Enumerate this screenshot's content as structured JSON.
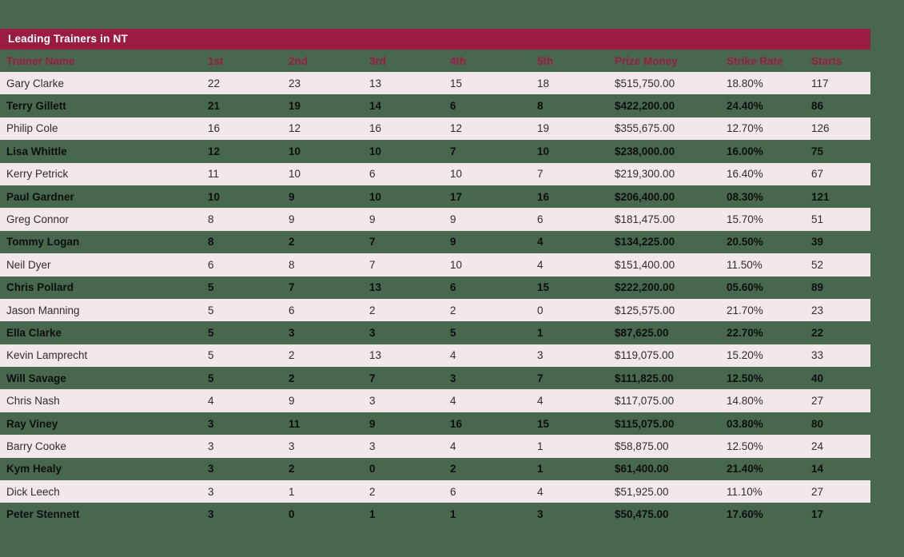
{
  "panel": {
    "title": "Leading Trainers in NT"
  },
  "colors": {
    "page_background": "#47684E",
    "title_bar": "#9C1B41",
    "header_text": "#9C1B41",
    "row_stripe_pink": "#F2E7EB",
    "title_text": "#FFFFFF"
  },
  "table": {
    "columns": [
      "Trainer Name",
      "1st",
      "2nd",
      "3rd",
      "4th",
      "5th",
      "Prize Money",
      "Strike Rate",
      "Starts"
    ],
    "column_keys": [
      "trainer-name",
      "firsts",
      "seconds",
      "thirds",
      "fourths",
      "fifths",
      "prize-money",
      "strike-rate",
      "starts"
    ],
    "rows": [
      [
        "Gary Clarke",
        "22",
        "23",
        "13",
        "15",
        "18",
        "$515,750.00",
        "18.80%",
        "117"
      ],
      [
        "Terry Gillett",
        "21",
        "19",
        "14",
        "6",
        "8",
        "$422,200.00",
        "24.40%",
        "86"
      ],
      [
        "Philip Cole",
        "16",
        "12",
        "16",
        "12",
        "19",
        "$355,675.00",
        "12.70%",
        "126"
      ],
      [
        "Lisa Whittle",
        "12",
        "10",
        "10",
        "7",
        "10",
        "$238,000.00",
        "16.00%",
        "75"
      ],
      [
        "Kerry Petrick",
        "11",
        "10",
        "6",
        "10",
        "7",
        "$219,300.00",
        "16.40%",
        "67"
      ],
      [
        "Paul Gardner",
        "10",
        "9",
        "10",
        "17",
        "16",
        "$206,400.00",
        "08.30%",
        "121"
      ],
      [
        "Greg Connor",
        "8",
        "9",
        "9",
        "9",
        "6",
        "$181,475.00",
        "15.70%",
        "51"
      ],
      [
        "Tommy Logan",
        "8",
        "2",
        "7",
        "9",
        "4",
        "$134,225.00",
        "20.50%",
        "39"
      ],
      [
        "Neil Dyer",
        "6",
        "8",
        "7",
        "10",
        "4",
        "$151,400.00",
        "11.50%",
        "52"
      ],
      [
        "Chris Pollard",
        "5",
        "7",
        "13",
        "6",
        "15",
        "$222,200.00",
        "05.60%",
        "89"
      ],
      [
        "Jason Manning",
        "5",
        "6",
        "2",
        "2",
        "0",
        "$125,575.00",
        "21.70%",
        "23"
      ],
      [
        "Ella Clarke",
        "5",
        "3",
        "3",
        "5",
        "1",
        "$87,625.00",
        "22.70%",
        "22"
      ],
      [
        "Kevin Lamprecht",
        "5",
        "2",
        "13",
        "4",
        "3",
        "$119,075.00",
        "15.20%",
        "33"
      ],
      [
        "Will Savage",
        "5",
        "2",
        "7",
        "3",
        "7",
        "$111,825.00",
        "12.50%",
        "40"
      ],
      [
        "Chris Nash",
        "4",
        "9",
        "3",
        "4",
        "4",
        "$117,075.00",
        "14.80%",
        "27"
      ],
      [
        "Ray Viney",
        "3",
        "11",
        "9",
        "16",
        "15",
        "$115,075.00",
        "03.80%",
        "80"
      ],
      [
        "Barry Cooke",
        "3",
        "3",
        "3",
        "4",
        "1",
        "$58,875.00",
        "12.50%",
        "24"
      ],
      [
        "Kym Healy",
        "3",
        "2",
        "0",
        "2",
        "1",
        "$61,400.00",
        "21.40%",
        "14"
      ],
      [
        "Dick Leech",
        "3",
        "1",
        "2",
        "6",
        "4",
        "$51,925.00",
        "11.10%",
        "27"
      ],
      [
        "Peter Stennett",
        "3",
        "0",
        "1",
        "1",
        "3",
        "$50,475.00",
        "17.60%",
        "17"
      ]
    ]
  }
}
